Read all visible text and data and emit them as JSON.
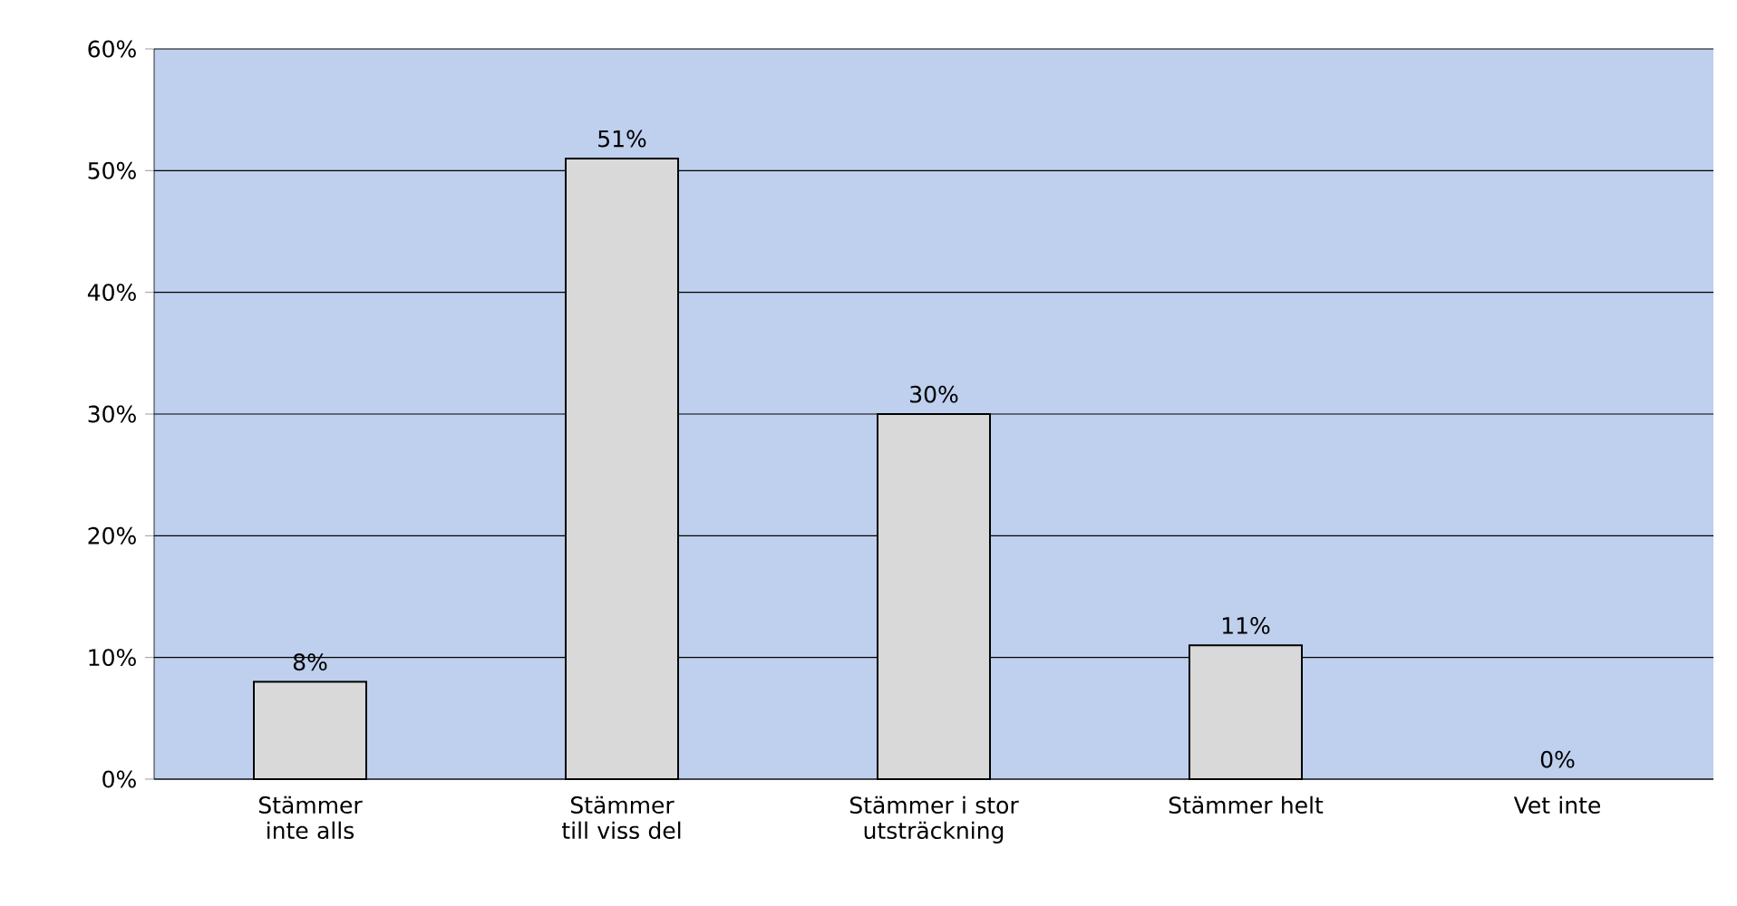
{
  "chart_data": {
    "type": "bar",
    "categories": [
      "Stämmer inte alls",
      "Stämmer till viss del",
      "Stämmer i stor utsträckning",
      "Stämmer helt",
      "Vet inte"
    ],
    "values": [
      8,
      51,
      30,
      11,
      0
    ],
    "color": "#d9d9d9",
    "value_labels": [
      "8%",
      "51%",
      "30%",
      "11%",
      "0%"
    ],
    "ylim": [
      0,
      60
    ],
    "yticks": [
      {
        "value": 0,
        "label": "0%"
      },
      {
        "value": 10,
        "label": "10%"
      },
      {
        "value": 20,
        "label": "20%"
      },
      {
        "value": 30,
        "label": "30%"
      },
      {
        "value": 40,
        "label": "40%"
      },
      {
        "value": 50,
        "label": "50%"
      },
      {
        "value": 60,
        "label": "60%"
      }
    ],
    "grid": "y"
  }
}
